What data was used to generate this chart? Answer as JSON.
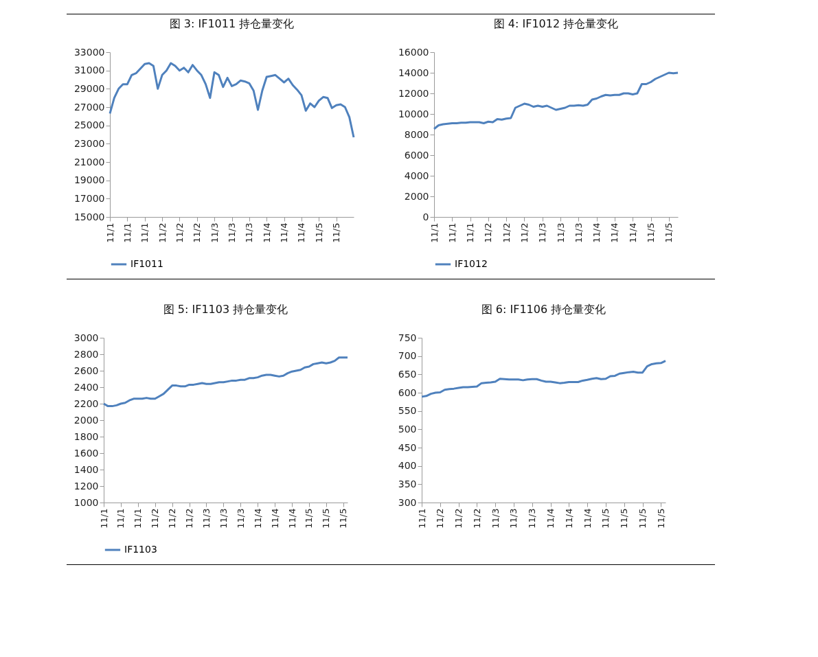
{
  "chart_data": [
    {
      "type": "line",
      "title": "图 3:  IF1011 持仓量变化",
      "legend": "bottom",
      "ylim": [
        15000,
        33000
      ],
      "yticks": [
        15000,
        17000,
        19000,
        21000,
        23000,
        25000,
        27000,
        29000,
        31000,
        33000
      ],
      "categories": [
        "11/1",
        null,
        null,
        null,
        "11/1",
        null,
        null,
        null,
        "11/1",
        null,
        null,
        null,
        "11/2",
        null,
        null,
        null,
        "11/2",
        null,
        null,
        null,
        "11/2",
        null,
        null,
        null,
        "11/3",
        null,
        null,
        null,
        "11/3",
        null,
        null,
        null,
        "11/3",
        null,
        null,
        null,
        "11/4",
        null,
        null,
        null,
        "11/4",
        null,
        null,
        null,
        "11/4",
        null,
        null,
        null,
        "11/5",
        null,
        null,
        null,
        "11/5",
        null,
        null,
        null,
        null
      ],
      "series": [
        {
          "name": "IF1011",
          "color": "#4f81bd",
          "values": [
            26300,
            28000,
            29000,
            29500,
            29500,
            30500,
            30700,
            31200,
            31700,
            31800,
            31500,
            29000,
            30500,
            31000,
            31800,
            31500,
            31000,
            31300,
            30800,
            31600,
            31000,
            30500,
            29500,
            28000,
            30800,
            30500,
            29200,
            30200,
            29300,
            29500,
            29900,
            29800,
            29600,
            28800,
            26700,
            28800,
            30300,
            30400,
            30500,
            30100,
            29700,
            30100,
            29400,
            28900,
            28300,
            26600,
            27400,
            27000,
            27700,
            28100,
            28000,
            26900,
            27200,
            27300,
            27000,
            25900,
            23700
          ]
        }
      ]
    },
    {
      "type": "line",
      "title": "图 4:  IF1012 持仓量变化",
      "legend": "bottom",
      "ylim": [
        0,
        16000
      ],
      "yticks": [
        0,
        2000,
        4000,
        6000,
        8000,
        10000,
        12000,
        14000,
        16000
      ],
      "categories": [
        "11/1",
        null,
        null,
        null,
        "11/1",
        null,
        null,
        null,
        "11/1",
        null,
        null,
        null,
        "11/2",
        null,
        null,
        null,
        "11/2",
        null,
        null,
        null,
        "11/2",
        null,
        null,
        null,
        "11/3",
        null,
        null,
        null,
        "11/3",
        null,
        null,
        null,
        "11/3",
        null,
        null,
        null,
        "11/4",
        null,
        null,
        null,
        "11/4",
        null,
        null,
        null,
        "11/4",
        null,
        null,
        null,
        "11/5",
        null,
        null,
        null,
        "11/5",
        null,
        null
      ],
      "series": [
        {
          "name": "IF1012",
          "color": "#4f81bd",
          "values": [
            8550,
            8900,
            9000,
            9050,
            9100,
            9100,
            9150,
            9150,
            9200,
            9200,
            9200,
            9100,
            9250,
            9200,
            9500,
            9450,
            9550,
            9600,
            10600,
            10800,
            11000,
            10900,
            10700,
            10800,
            10700,
            10800,
            10600,
            10400,
            10500,
            10600,
            10800,
            10800,
            10850,
            10800,
            10900,
            11400,
            11500,
            11700,
            11850,
            11800,
            11850,
            11850,
            12000,
            12000,
            11900,
            12000,
            12900,
            12900,
            13100,
            13400,
            13600,
            13800,
            14000,
            13950,
            14000
          ]
        }
      ]
    },
    {
      "type": "line",
      "title": "图 5:  IF1103 持仓量变化",
      "legend": "bottom",
      "ylim": [
        1000,
        3000
      ],
      "yticks": [
        1000,
        1200,
        1400,
        1600,
        1800,
        2000,
        2200,
        2400,
        2600,
        2800,
        3000
      ],
      "categories": [
        "11/1",
        null,
        null,
        null,
        "11/1",
        null,
        null,
        null,
        "11/1",
        null,
        null,
        null,
        "11/2",
        null,
        null,
        null,
        "11/2",
        null,
        null,
        null,
        "11/2",
        null,
        null,
        null,
        "11/3",
        null,
        null,
        null,
        "11/3",
        null,
        null,
        null,
        "11/3",
        null,
        null,
        null,
        "11/4",
        null,
        null,
        null,
        "11/4",
        null,
        null,
        null,
        "11/4",
        null,
        null,
        null,
        "11/5",
        null,
        null,
        null,
        "11/5",
        null,
        null,
        null,
        "11/5",
        null
      ],
      "series": [
        {
          "name": "IF1103",
          "color": "#4f81bd",
          "values": [
            2200,
            2170,
            2170,
            2180,
            2200,
            2210,
            2240,
            2260,
            2260,
            2260,
            2270,
            2260,
            2260,
            2290,
            2320,
            2370,
            2420,
            2420,
            2410,
            2410,
            2430,
            2430,
            2440,
            2450,
            2440,
            2440,
            2450,
            2460,
            2460,
            2470,
            2480,
            2480,
            2490,
            2490,
            2510,
            2510,
            2520,
            2540,
            2550,
            2550,
            2540,
            2530,
            2540,
            2570,
            2590,
            2600,
            2610,
            2640,
            2650,
            2680,
            2690,
            2700,
            2690,
            2700,
            2720,
            2760,
            2760,
            2760
          ]
        }
      ]
    },
    {
      "type": "line",
      "title": "图 6:  IF1106 持仓量变化",
      "ylim": [
        300,
        750
      ],
      "yticks": [
        300,
        350,
        400,
        450,
        500,
        550,
        600,
        650,
        700,
        750
      ],
      "categories": [
        "11/1",
        null,
        null,
        null,
        "11/2",
        null,
        null,
        null,
        "11/2",
        null,
        null,
        null,
        "11/2",
        null,
        null,
        null,
        "11/3",
        null,
        null,
        null,
        "11/3",
        null,
        null,
        null,
        "11/3",
        null,
        null,
        null,
        "11/4",
        null,
        null,
        null,
        "11/4",
        null,
        null,
        null,
        "11/4",
        null,
        null,
        null,
        "11/5",
        null,
        null,
        null,
        "11/5",
        null,
        null,
        null,
        "11/5",
        null,
        null,
        null,
        "11/5",
        null
      ],
      "series": [
        {
          "color": "#4f81bd",
          "values": [
            589,
            591,
            597,
            600,
            601,
            608,
            610,
            611,
            613,
            615,
            615,
            616,
            617,
            626,
            627,
            628,
            630,
            638,
            637,
            636,
            636,
            636,
            634,
            636,
            637,
            637,
            633,
            630,
            630,
            628,
            626,
            627,
            629,
            629,
            629,
            633,
            635,
            638,
            640,
            637,
            638,
            645,
            646,
            652,
            654,
            656,
            657,
            655,
            655,
            672,
            678,
            680,
            681,
            687
          ]
        }
      ]
    }
  ]
}
